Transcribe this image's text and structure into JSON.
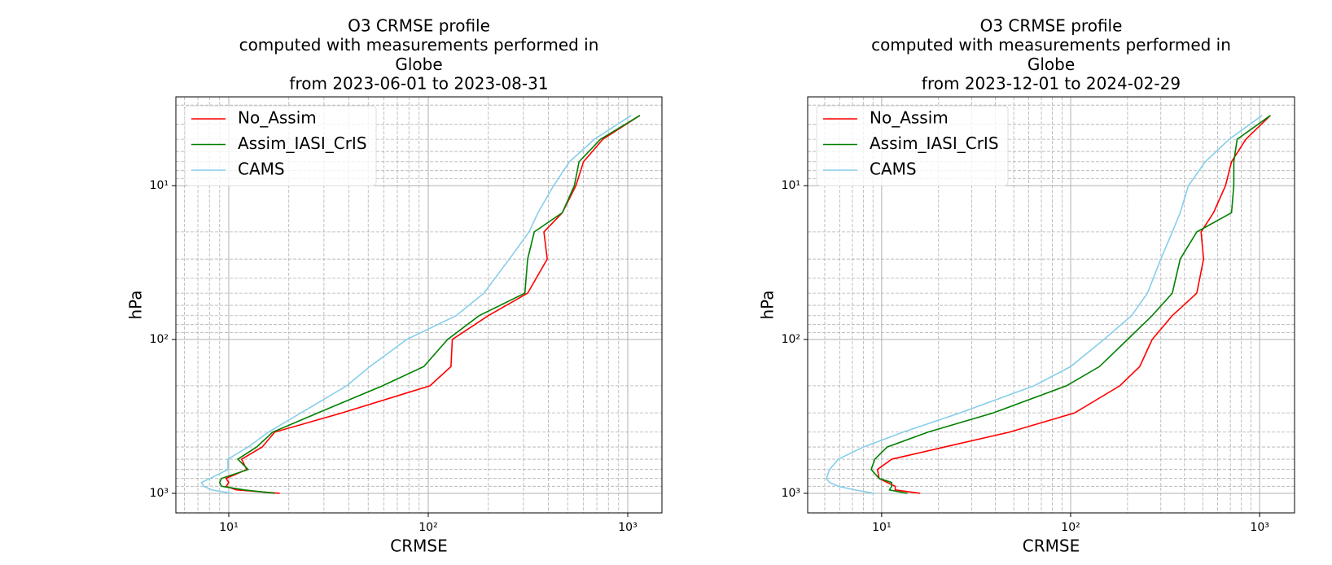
{
  "chart_data": [
    {
      "type": "line",
      "title": [
        "O3 CRMSE profile",
        "computed with measurements performed in",
        "Globe",
        "from 2023-06-01 to 2023-08-31"
      ],
      "xlabel": "CRMSE",
      "ylabel": "hPa",
      "xscale": "log",
      "yscale": "log",
      "yinverted": true,
      "grid": true,
      "legend": "upper left",
      "y": [
        3.5,
        5,
        7,
        10,
        15,
        20,
        30,
        50,
        70,
        100,
        150,
        200,
        300,
        400,
        500,
        600,
        700,
        800,
        850,
        900,
        950,
        1000
      ],
      "series": [
        {
          "name": "No_Assim",
          "color": "#ff0000",
          "values": [
            1150,
            750,
            600,
            550,
            470,
            380,
            395,
            315,
            200,
            132,
            130,
            102,
            37,
            17,
            14.7,
            11.6,
            12.3,
            9.7,
            10,
            9.7,
            10.9,
            18
          ]
        },
        {
          "name": "Assim_IASI_CrIS",
          "color": "#008000",
          "values": [
            1150,
            730,
            570,
            540,
            470,
            340,
            315,
            305,
            180,
            125,
            95,
            59,
            28,
            16.6,
            13.8,
            11.1,
            12.5,
            9.2,
            9,
            9.2,
            12,
            17
          ]
        },
        {
          "name": "CAMS",
          "color": "#87ceeb",
          "values": [
            1040,
            680,
            510,
            425,
            355,
            320,
            255,
            190,
            138,
            78,
            51,
            39,
            23,
            15.8,
            12.5,
            9.9,
            9.9,
            8.06,
            7.3,
            7.5,
            8.2,
            10.4
          ]
        }
      ],
      "xlim": [
        5.43,
        1484
      ],
      "ylim": [
        2.65,
        1340
      ],
      "xticks": [
        {
          "value": 10,
          "label": "10¹"
        },
        {
          "value": 100,
          "label": "10²"
        },
        {
          "value": 1000,
          "label": "10³"
        }
      ],
      "yticks": [
        {
          "value": 10,
          "label": "10¹"
        },
        {
          "value": 100,
          "label": "10²"
        },
        {
          "value": 1000,
          "label": "10³"
        }
      ],
      "xminor": [
        6,
        7,
        8,
        9,
        20,
        30,
        40,
        50,
        60,
        70,
        80,
        90,
        200,
        300,
        400,
        500,
        600,
        700,
        800,
        900
      ],
      "yminor": [
        3,
        4,
        5,
        6,
        7,
        8,
        9,
        20,
        30,
        40,
        50,
        60,
        70,
        80,
        90,
        200,
        300,
        400,
        500,
        600,
        700,
        800,
        900
      ]
    },
    {
      "type": "line",
      "title": [
        "O3 CRMSE profile",
        "computed with measurements performed in",
        "Globe",
        "from 2023-12-01 to 2024-02-29"
      ],
      "xlabel": "CRMSE",
      "ylabel": "hPa",
      "xscale": "log",
      "yscale": "log",
      "yinverted": true,
      "grid": true,
      "legend": "upper left",
      "y": [
        3.5,
        5,
        7,
        10,
        15,
        20,
        30,
        50,
        70,
        100,
        150,
        200,
        300,
        400,
        500,
        600,
        700,
        800,
        850,
        900,
        950,
        1000
      ],
      "series": [
        {
          "name": "No_Assim",
          "color": "#ff0000",
          "values": [
            1140,
            845,
            710,
            660,
            570,
            490,
            505,
            465,
            345,
            270,
            232,
            182,
            105,
            47.5,
            21.5,
            11.3,
            9.5,
            9.7,
            10.7,
            11.8,
            11.8,
            16
          ]
        },
        {
          "name": "Assim_IASI_CrIS",
          "color": "#008000",
          "values": [
            1140,
            760,
            730,
            730,
            710,
            465,
            380,
            345,
            270,
            200,
            142,
            95,
            39,
            17.6,
            10.7,
            9.2,
            8.8,
            9.7,
            11.3,
            11.3,
            11,
            13.7
          ]
        },
        {
          "name": "CAMS",
          "color": "#87ceeb",
          "values": [
            1030,
            690,
            515,
            420,
            380,
            345,
            300,
            255,
            210,
            150,
            100,
            64,
            26,
            13,
            8,
            5.9,
            5.3,
            5.1,
            5.3,
            5.9,
            7.2,
            9.2
          ]
        }
      ],
      "xlim": [
        4.06,
        1530
      ],
      "ylim": [
        2.65,
        1340
      ],
      "xticks": [
        {
          "value": 10,
          "label": "10¹"
        },
        {
          "value": 100,
          "label": "10²"
        },
        {
          "value": 1000,
          "label": "10³"
        }
      ],
      "yticks": [
        {
          "value": 10,
          "label": "10¹"
        },
        {
          "value": 100,
          "label": "10²"
        },
        {
          "value": 1000,
          "label": "10³"
        }
      ],
      "xminor": [
        5,
        6,
        7,
        8,
        9,
        20,
        30,
        40,
        50,
        60,
        70,
        80,
        90,
        200,
        300,
        400,
        500,
        600,
        700,
        800,
        900
      ],
      "yminor": [
        3,
        4,
        5,
        6,
        7,
        8,
        9,
        20,
        30,
        40,
        50,
        60,
        70,
        80,
        90,
        200,
        300,
        400,
        500,
        600,
        700,
        800,
        900
      ]
    }
  ]
}
